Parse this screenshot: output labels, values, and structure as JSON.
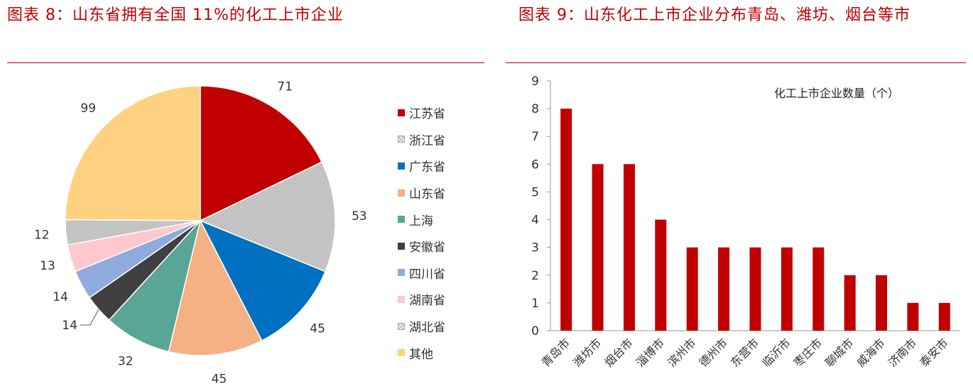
{
  "figure8": {
    "title": "图表 8：山东省拥有全国 11%的化工上市企业"
  },
  "figure9": {
    "title": "图表 9：山东化工上市企业分布青岛、潍坊、烟台等市",
    "series_label": "化工上市企业数量（个）"
  },
  "chart_data": [
    {
      "type": "pie",
      "title": "图表 8：山东省拥有全国 11%的化工上市企业",
      "slices": [
        {
          "label": "江苏省",
          "value": 71,
          "color": "#c00000"
        },
        {
          "label": "浙江省",
          "value": 53,
          "color": "#bfbfbf",
          "pattern": "hatched"
        },
        {
          "label": "广东省",
          "value": 45,
          "color": "#0070c0"
        },
        {
          "label": "山东省",
          "value": 45,
          "color": "#f4b183"
        },
        {
          "label": "上海",
          "value": 32,
          "color": "#5aa595"
        },
        {
          "label": "安徽省",
          "value": 14,
          "color": "#404040"
        },
        {
          "label": "四川省",
          "value": 14,
          "color": "#8faadc"
        },
        {
          "label": "湖南省",
          "value": 13,
          "color": "#ffc7ce"
        },
        {
          "label": "湖北省",
          "value": 12,
          "color": "#bfbfbf",
          "pattern": "hatched"
        },
        {
          "label": "其他",
          "value": 99,
          "color": "#ffd180"
        }
      ],
      "legend_position": "right",
      "start": "top, clockwise"
    },
    {
      "type": "bar",
      "title": "图表 9：山东化工上市企业分布青岛、潍坊、烟台等市",
      "series": [
        {
          "name": "化工上市企业数量（个）",
          "color": "#c00000",
          "values": [
            8,
            6,
            6,
            4,
            3,
            3,
            3,
            3,
            3,
            2,
            2,
            1,
            1
          ]
        }
      ],
      "categories": [
        "青岛市",
        "潍坊市",
        "烟台市",
        "淄博市",
        "滨州市",
        "德州市",
        "东营市",
        "临沂市",
        "枣庄市",
        "聊城市",
        "威海市",
        "济南市",
        "泰安市"
      ],
      "ylim": [
        0,
        9
      ],
      "yticks": [
        0,
        1,
        2,
        3,
        4,
        5,
        6,
        7,
        8,
        9
      ],
      "grid": false,
      "legend_position": "top-right"
    }
  ]
}
